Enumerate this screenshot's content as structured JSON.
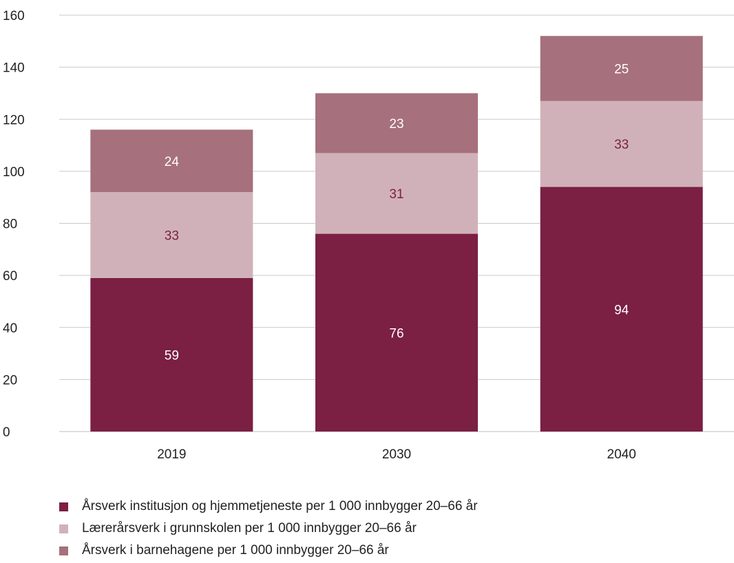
{
  "chart_data": {
    "type": "bar",
    "stacked": true,
    "categories": [
      "2019",
      "2030",
      "2040"
    ],
    "series": [
      {
        "name": "Årsverk institusjon og hjemmetjeneste per 1 000 innbygger 20–66 år",
        "values": [
          59,
          76,
          94
        ],
        "color": "#7b1f43",
        "label_color": "#ffffff"
      },
      {
        "name": "Lærerårsverk i grunnskolen per 1 000 innbygger 20–66 år",
        "values": [
          33,
          31,
          33
        ],
        "color": "#d1b1b9",
        "label_color": "#7b1f43"
      },
      {
        "name": "Årsverk i barnehagene per 1 000 innbygger 20–66 år",
        "values": [
          24,
          23,
          25
        ],
        "color": "#a6707d",
        "label_color": "#ffffff"
      }
    ],
    "ylim": [
      0,
      160
    ],
    "yticks": [
      0,
      20,
      40,
      60,
      80,
      100,
      120,
      140,
      160
    ],
    "grid": true,
    "legend_position": "bottom-left",
    "title": "",
    "xlabel": "",
    "ylabel": ""
  }
}
